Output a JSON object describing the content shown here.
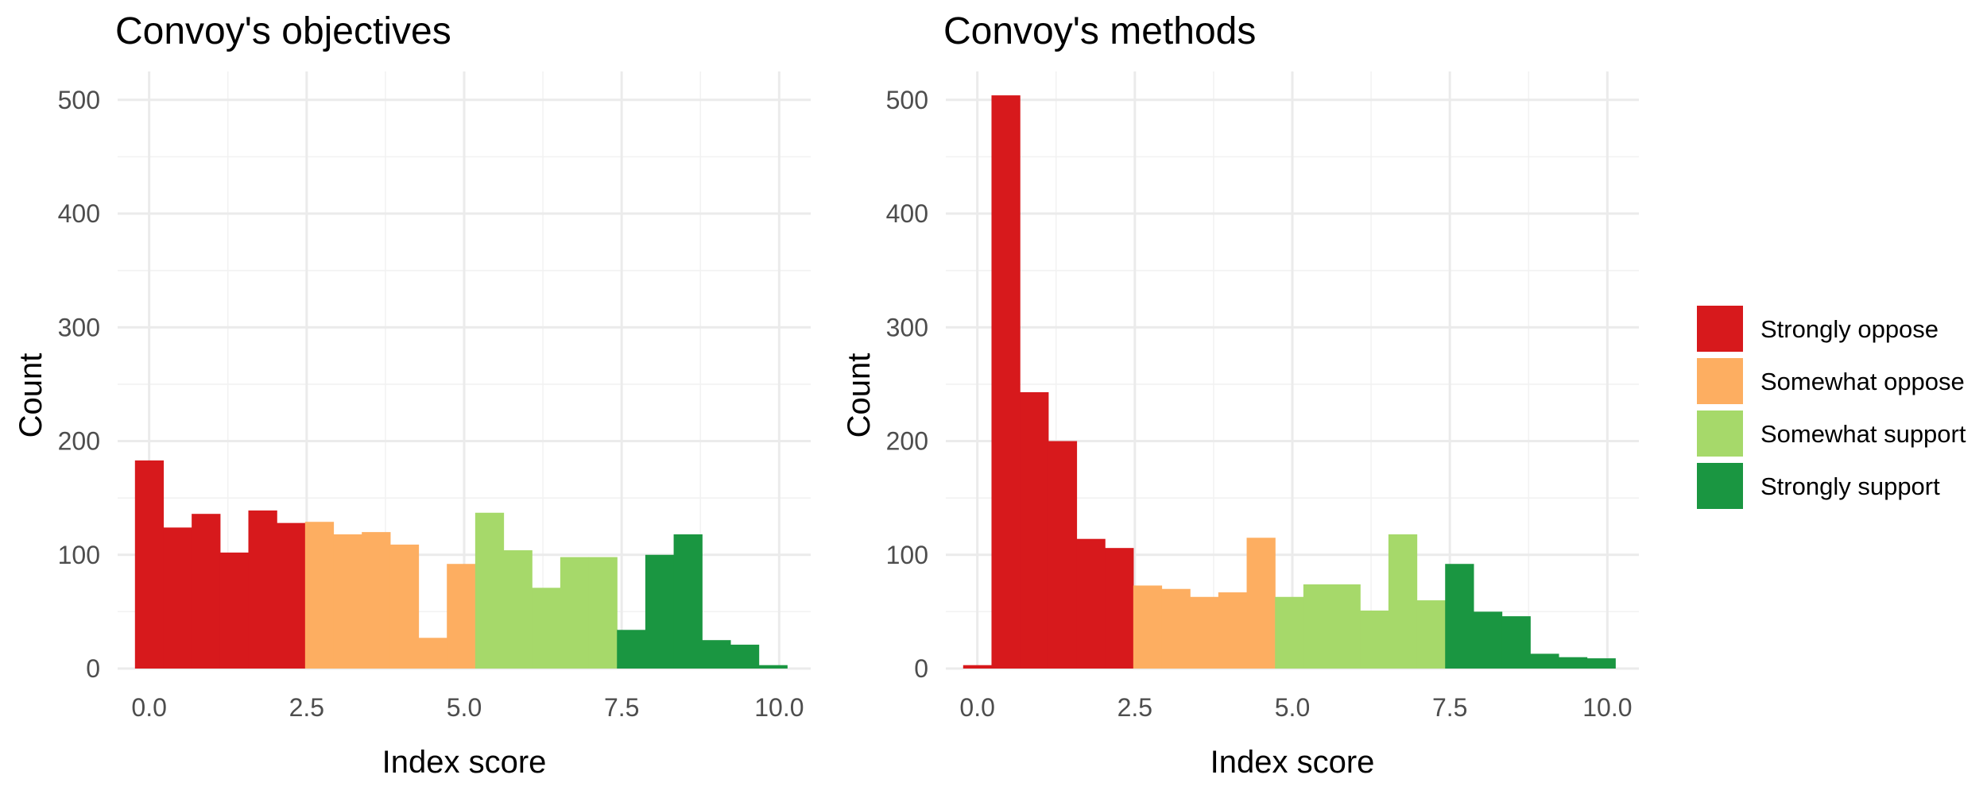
{
  "chart_data": [
    {
      "type": "bar",
      "title": "Convoy's objectives",
      "xlabel": "Index score",
      "ylabel": "Count",
      "xlim": [
        -0.5,
        10.5
      ],
      "ylim": [
        0,
        525
      ],
      "x_ticks": [
        "0.0",
        "2.5",
        "5.0",
        "7.5",
        "10.0"
      ],
      "y_ticks": [
        "0",
        "100",
        "200",
        "300",
        "400",
        "500"
      ],
      "bin_width": 0.45,
      "bars": [
        {
          "start": -0.225,
          "count": 183,
          "category": "Strongly oppose"
        },
        {
          "start": 0.225,
          "count": 124,
          "category": "Strongly oppose"
        },
        {
          "start": 0.675,
          "count": 136,
          "category": "Strongly oppose"
        },
        {
          "start": 1.125,
          "count": 102,
          "category": "Strongly oppose"
        },
        {
          "start": 1.575,
          "count": 139,
          "category": "Strongly oppose"
        },
        {
          "start": 2.025,
          "count": 128,
          "category": "Strongly oppose"
        },
        {
          "start": 2.475,
          "count": 129,
          "category": "Somewhat oppose"
        },
        {
          "start": 2.925,
          "count": 118,
          "category": "Somewhat oppose"
        },
        {
          "start": 3.375,
          "count": 120,
          "category": "Somewhat oppose"
        },
        {
          "start": 3.825,
          "count": 109,
          "category": "Somewhat oppose"
        },
        {
          "start": 4.275,
          "count": 27,
          "category": "Somewhat oppose"
        },
        {
          "start": 4.725,
          "count": 92,
          "category": "Somewhat oppose"
        },
        {
          "start": 5.175,
          "count": 137,
          "category": "Somewhat support"
        },
        {
          "start": 5.625,
          "count": 104,
          "category": "Somewhat support"
        },
        {
          "start": 6.075,
          "count": 71,
          "category": "Somewhat support"
        },
        {
          "start": 6.525,
          "count": 98,
          "category": "Somewhat support"
        },
        {
          "start": 6.975,
          "count": 98,
          "category": "Somewhat support"
        },
        {
          "start": 7.425,
          "count": 34,
          "category": "Strongly support"
        },
        {
          "start": 7.875,
          "count": 100,
          "category": "Strongly support"
        },
        {
          "start": 8.325,
          "count": 118,
          "category": "Strongly support"
        },
        {
          "start": 8.775,
          "count": 25,
          "category": "Strongly support"
        },
        {
          "start": 9.225,
          "count": 21,
          "category": "Strongly support"
        },
        {
          "start": 9.675,
          "count": 3,
          "category": "Strongly support"
        }
      ]
    },
    {
      "type": "bar",
      "title": "Convoy's methods",
      "xlabel": "Index score",
      "ylabel": "Count",
      "xlim": [
        -0.5,
        10.5
      ],
      "ylim": [
        0,
        525
      ],
      "x_ticks": [
        "0.0",
        "2.5",
        "5.0",
        "7.5",
        "10.0"
      ],
      "y_ticks": [
        "0",
        "100",
        "200",
        "300",
        "400",
        "500"
      ],
      "bin_width": 0.45,
      "bars": [
        {
          "start": -0.225,
          "count": 3,
          "category": "Strongly oppose"
        },
        {
          "start": 0.225,
          "count": 504,
          "category": "Strongly oppose"
        },
        {
          "start": 0.675,
          "count": 243,
          "category": "Strongly oppose"
        },
        {
          "start": 1.125,
          "count": 200,
          "category": "Strongly oppose"
        },
        {
          "start": 1.575,
          "count": 114,
          "category": "Strongly oppose"
        },
        {
          "start": 2.025,
          "count": 106,
          "category": "Strongly oppose"
        },
        {
          "start": 2.475,
          "count": 73,
          "category": "Somewhat oppose"
        },
        {
          "start": 2.925,
          "count": 70,
          "category": "Somewhat oppose"
        },
        {
          "start": 3.375,
          "count": 63,
          "category": "Somewhat oppose"
        },
        {
          "start": 3.825,
          "count": 67,
          "category": "Somewhat oppose"
        },
        {
          "start": 4.275,
          "count": 115,
          "category": "Somewhat oppose"
        },
        {
          "start": 4.725,
          "count": 63,
          "category": "Somewhat support"
        },
        {
          "start": 5.175,
          "count": 74,
          "category": "Somewhat support"
        },
        {
          "start": 5.625,
          "count": 74,
          "category": "Somewhat support"
        },
        {
          "start": 6.075,
          "count": 51,
          "category": "Somewhat support"
        },
        {
          "start": 6.525,
          "count": 118,
          "category": "Somewhat support"
        },
        {
          "start": 6.975,
          "count": 60,
          "category": "Somewhat support"
        },
        {
          "start": 7.425,
          "count": 92,
          "category": "Strongly support"
        },
        {
          "start": 7.875,
          "count": 50,
          "category": "Strongly support"
        },
        {
          "start": 8.325,
          "count": 46,
          "category": "Strongly support"
        },
        {
          "start": 8.775,
          "count": 13,
          "category": "Strongly support"
        },
        {
          "start": 9.225,
          "count": 10,
          "category": "Strongly support"
        },
        {
          "start": 9.675,
          "count": 9,
          "category": "Strongly support"
        }
      ]
    }
  ],
  "legend": {
    "placement": "right",
    "items": [
      {
        "label": "Strongly oppose",
        "color": "#d7191c"
      },
      {
        "label": "Somewhat oppose",
        "color": "#fdae61"
      },
      {
        "label": "Somewhat support",
        "color": "#a6d96a"
      },
      {
        "label": "Strongly support",
        "color": "#1a9641"
      }
    ]
  }
}
